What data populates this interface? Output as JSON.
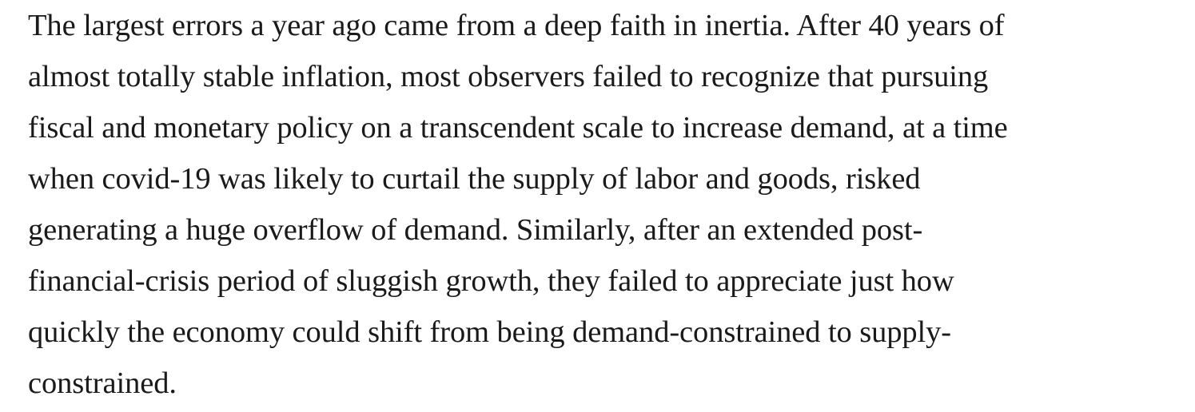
{
  "article": {
    "paragraph_lines": [
      "The largest errors a year ago came from a deep faith in inertia. After 40 years of",
      "almost totally stable inflation, most observers failed to recognize that pursuing",
      "fiscal and monetary policy on a transcendent scale to increase demand, at a time",
      "when covid-19 was likely to curtail the supply of labor and goods, risked",
      "generating a huge overflow of demand. Similarly, after an extended post-",
      "financial-crisis period of sluggish growth, they failed to appreciate just how",
      "quickly the economy could shift from being demand-constrained to supply-",
      "constrained."
    ]
  }
}
